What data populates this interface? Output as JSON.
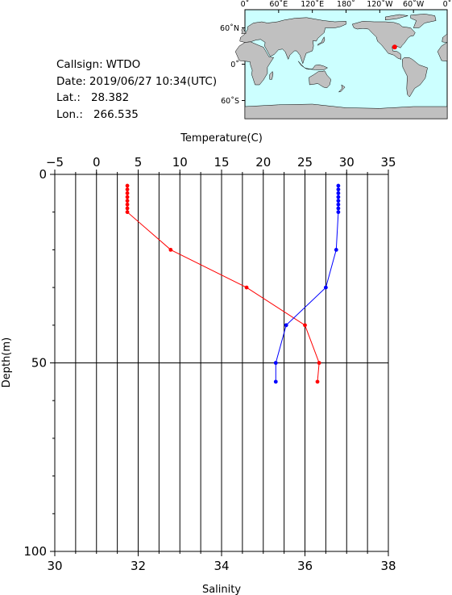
{
  "station": {
    "callsign_label": "Callsign:",
    "callsign": "WTDO",
    "date_label": "Date:",
    "date": "2019/06/27 10:34(UTC)",
    "lat_label": "Lat.:",
    "lat": "28.382",
    "lon_label": "Lon.:",
    "lon": "266.535"
  },
  "map": {
    "lon_ticks": [
      "0˚",
      "60˚E",
      "120˚E",
      "180˚",
      "120˚W",
      "60˚W",
      "0˚"
    ],
    "lat_ticks": [
      "60˚N",
      "0˚",
      "60˚S"
    ],
    "ocean_color": "#ccffff",
    "land_color": "#c0c0c0",
    "marker_color": "#ff0000",
    "marker_lon": 266.535,
    "marker_lat": 28.382
  },
  "chart_data": {
    "type": "line",
    "top_axis": {
      "label": "Temperature(C)",
      "range": [
        -5,
        35
      ],
      "ticks": [
        "−5",
        "0",
        "5",
        "10",
        "15",
        "20",
        "25",
        "30",
        "35"
      ]
    },
    "bottom_axis": {
      "label": "Salinity",
      "range": [
        30,
        38
      ],
      "ticks": [
        "30",
        "32",
        "34",
        "36",
        "38"
      ]
    },
    "left_axis": {
      "label": "Depth(m)",
      "range": [
        0,
        100
      ],
      "inverted": true,
      "ticks": [
        "0",
        "50",
        "100"
      ]
    },
    "grid": true,
    "series": [
      {
        "axis": "temperature",
        "color": "#ff0000",
        "depth": [
          3,
          4,
          5,
          6,
          7,
          8,
          9,
          10,
          20,
          30,
          40,
          50,
          55
        ],
        "values": [
          3.7,
          3.7,
          3.7,
          3.7,
          3.7,
          3.7,
          3.7,
          3.7,
          8.9,
          18.0,
          25.0,
          26.7,
          26.5
        ]
      },
      {
        "axis": "salinity",
        "color": "#0000ff",
        "depth": [
          3,
          4,
          5,
          6,
          7,
          8,
          9,
          10,
          20,
          30,
          40,
          50,
          55
        ],
        "values": [
          36.8,
          36.8,
          36.8,
          36.8,
          36.8,
          36.8,
          36.8,
          36.8,
          36.75,
          36.5,
          35.55,
          35.3,
          35.3
        ]
      }
    ]
  }
}
